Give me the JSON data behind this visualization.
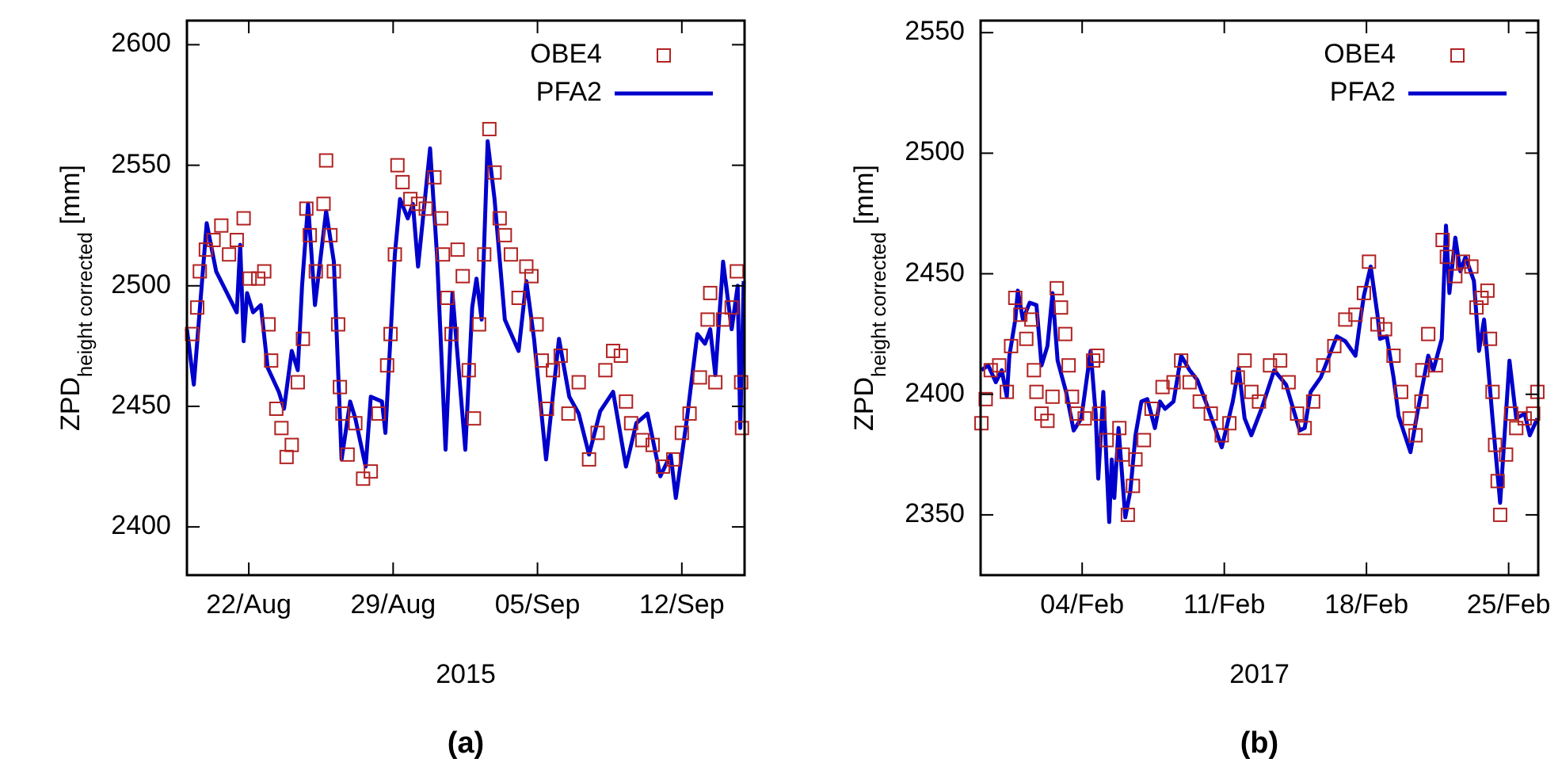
{
  "chart_data": [
    {
      "type": "scatter",
      "title": "(a)",
      "xlabel": "2015",
      "ylabel": "ZPD$_{height corrected}$ [mm]",
      "xlim": [
        "2015-08-19",
        "2015-09-15T01:00"
      ],
      "ylim": [
        2380,
        2610
      ],
      "xticks": [
        {
          "value": "2015-08-22",
          "label": "22/Aug"
        },
        {
          "value": "2015-08-29",
          "label": "29/Aug"
        },
        {
          "value": "2015-09-05",
          "label": "05/Sep"
        },
        {
          "value": "2015-09-12",
          "label": "12/Sep"
        }
      ],
      "yticks": [
        2400,
        2450,
        2500,
        2550,
        2600
      ],
      "grid": false,
      "legend": "top right",
      "series": [
        {
          "name": "OBE4",
          "marker": "square",
          "color": "#b22222",
          "x": [
            "2015-08-19T06:00",
            "2015-08-19T12:00",
            "2015-08-19T15:00",
            "2015-08-19T22:00",
            "2015-08-20T07:00",
            "2015-08-20T16:00",
            "2015-08-21T01:00",
            "2015-08-21T10:00",
            "2015-08-21T18:00",
            "2015-08-22T01:00",
            "2015-08-22T11:00",
            "2015-08-22T18:00",
            "2015-08-22T23:00",
            "2015-08-23T02:00",
            "2015-08-23T08:00",
            "2015-08-23T14:00",
            "2015-08-23T20:00",
            "2015-08-24T02:00",
            "2015-08-24T09:00",
            "2015-08-24T15:00",
            "2015-08-24T19:00",
            "2015-08-24T23:00",
            "2015-08-25T06:00",
            "2015-08-25T15:00",
            "2015-08-25T18:00",
            "2015-08-25T23:00",
            "2015-08-26T03:00",
            "2015-08-26T08:00",
            "2015-08-26T10:00",
            "2015-08-26T13:00",
            "2015-08-26T19:00",
            "2015-08-27T04:00",
            "2015-08-27T13:00",
            "2015-08-27T22:00",
            "2015-08-28T07:00",
            "2015-08-28T17:00",
            "2015-08-28T21:00",
            "2015-08-29T02:00",
            "2015-08-29T05:00",
            "2015-08-29T11:00",
            "2015-08-29T20:00",
            "2015-08-30T05:00",
            "2015-08-30T14:00",
            "2015-08-31T00:00",
            "2015-08-31T08:00",
            "2015-08-31T10:00",
            "2015-08-31T15:00",
            "2015-08-31T20:00",
            "2015-09-01T03:00",
            "2015-09-01T09:00",
            "2015-09-01T16:00",
            "2015-09-01T22:00",
            "2015-09-02T04:00",
            "2015-09-02T10:00",
            "2015-09-02T16:00",
            "2015-09-02T22:00",
            "2015-09-03T04:00",
            "2015-09-03T10:00",
            "2015-09-03T17:00",
            "2015-09-04T02:00",
            "2015-09-04T11:00",
            "2015-09-04T17:00",
            "2015-09-04T23:00",
            "2015-09-05T05:00",
            "2015-09-05T11:00",
            "2015-09-05T18:00",
            "2015-09-06T03:00",
            "2015-09-06T12:00",
            "2015-09-07T00:00",
            "2015-09-07T12:00",
            "2015-09-07T22:00",
            "2015-09-08T07:00",
            "2015-09-08T16:00",
            "2015-09-09T01:00",
            "2015-09-09T07:00",
            "2015-09-09T13:00",
            "2015-09-10T02:00",
            "2015-09-10T14:00",
            "2015-09-11T02:00",
            "2015-09-11T14:00",
            "2015-09-12T00:00",
            "2015-09-12T09:00",
            "2015-09-12T21:00",
            "2015-09-13T06:00",
            "2015-09-13T09:00",
            "2015-09-13T15:00",
            "2015-09-14T00:00",
            "2015-09-14T10:00",
            "2015-09-14T16:00",
            "2015-09-14T21:00",
            "2015-09-14T22:00"
          ],
          "values": [
            2480,
            2491,
            2506,
            2515,
            2519,
            2525,
            2513,
            2519,
            2528,
            2503,
            2503,
            2506,
            2484,
            2469,
            2449,
            2441,
            2429,
            2434,
            2460,
            2478,
            2532,
            2521,
            2506,
            2534,
            2552,
            2521,
            2506,
            2484,
            2458,
            2447,
            2430,
            2443,
            2420,
            2423,
            2447,
            2467,
            2480,
            2513,
            2550,
            2543,
            2536,
            2534,
            2532,
            2545,
            2528,
            2513,
            2495,
            2480,
            2515,
            2504,
            2465,
            2445,
            2484,
            2513,
            2565,
            2547,
            2528,
            2521,
            2513,
            2495,
            2508,
            2504,
            2484,
            2469,
            2449,
            2465,
            2471,
            2447,
            2460,
            2428,
            2439,
            2465,
            2473,
            2471,
            2452,
            2443,
            2436,
            2434,
            2425,
            2428,
            2439,
            2447,
            2462,
            2486,
            2497,
            2460,
            2486,
            2491,
            2506,
            2460,
            2441
          ]
        },
        {
          "name": "PFA2",
          "type": "line",
          "color": "#0000cc",
          "line_style": "solid",
          "x": [
            "2015-08-19T00:00",
            "2015-08-19T08:00",
            "2015-08-19T23:00",
            "2015-08-20T10:00",
            "2015-08-21T10:00",
            "2015-08-21T14:00",
            "2015-08-21T18:00",
            "2015-08-21T22:00",
            "2015-08-22T05:00",
            "2015-08-22T14:00",
            "2015-08-22T22:00",
            "2015-08-23T11:00",
            "2015-08-23T17:00",
            "2015-08-24T02:00",
            "2015-08-24T09:00",
            "2015-08-24T14:00",
            "2015-08-24T21:00",
            "2015-08-25T05:00",
            "2015-08-25T18:00",
            "2015-08-26T03:00",
            "2015-08-26T12:00",
            "2015-08-26T22:00",
            "2015-08-27T04:00",
            "2015-08-27T16:00",
            "2015-08-27T22:00",
            "2015-08-28T11:00",
            "2015-08-28T15:00",
            "2015-08-29T02:00",
            "2015-08-29T08:00",
            "2015-08-29T17:00",
            "2015-08-29T23:00",
            "2015-08-30T05:00",
            "2015-08-30T19:00",
            "2015-08-31T03:00",
            "2015-08-31T13:00",
            "2015-08-31T21:00",
            "2015-09-01T12:00",
            "2015-09-01T20:00",
            "2015-09-02T01:00",
            "2015-09-02T07:00",
            "2015-09-02T14:00",
            "2015-09-02T22:00",
            "2015-09-03T10:00",
            "2015-09-04T02:00",
            "2015-09-04T11:00",
            "2015-09-04T20:00",
            "2015-09-05T10:00",
            "2015-09-06T01:00",
            "2015-09-06T13:00",
            "2015-09-07T00:00",
            "2015-09-07T12:00",
            "2015-09-08T01:00",
            "2015-09-08T16:00",
            "2015-09-09T07:00",
            "2015-09-09T19:00",
            "2015-09-10T08:00",
            "2015-09-10T23:00",
            "2015-09-11T11:00",
            "2015-09-11T17:00",
            "2015-09-12T06:00",
            "2015-09-12T18:00",
            "2015-09-13T03:00",
            "2015-09-13T09:00",
            "2015-09-13T15:00",
            "2015-09-14T00:00",
            "2015-09-14T10:00",
            "2015-09-14T17:00",
            "2015-09-14T20:00",
            "2015-09-15T00:00"
          ],
          "values": [
            2482,
            2459,
            2526,
            2506,
            2489,
            2517,
            2477,
            2497,
            2489,
            2492,
            2466,
            2456,
            2449,
            2473,
            2465,
            2500,
            2534,
            2492,
            2531,
            2510,
            2428,
            2452,
            2445,
            2425,
            2454,
            2452,
            2439,
            2513,
            2536,
            2528,
            2534,
            2508,
            2557,
            2513,
            2432,
            2497,
            2432,
            2491,
            2503,
            2486,
            2560,
            2536,
            2486,
            2473,
            2502,
            2478,
            2428,
            2478,
            2454,
            2447,
            2430,
            2448,
            2456,
            2425,
            2443,
            2447,
            2421,
            2430,
            2412,
            2445,
            2480,
            2476,
            2482,
            2463,
            2510,
            2482,
            2500,
            2441,
            2502
          ]
        }
      ]
    },
    {
      "type": "scatter",
      "title": "(b)",
      "xlabel": "2017",
      "ylabel": "ZPD$_{height corrected}$ [mm]",
      "xlim": [
        "2017-01-30",
        "2017-02-26T11:00"
      ],
      "ylim": [
        2325,
        2555
      ],
      "xticks": [
        {
          "value": "2017-02-04",
          "label": "04/Feb"
        },
        {
          "value": "2017-02-11",
          "label": "11/Feb"
        },
        {
          "value": "2017-02-18",
          "label": "18/Feb"
        },
        {
          "value": "2017-02-25",
          "label": "25/Feb"
        }
      ],
      "yticks": [
        2350,
        2400,
        2450,
        2500,
        2550
      ],
      "grid": false,
      "legend": "top right",
      "series": [
        {
          "name": "OBE4",
          "marker": "square",
          "color": "#b22222",
          "x": [
            "2017-01-30T01:00",
            "2017-01-30T06:00",
            "2017-01-30T12:00",
            "2017-01-30T22:00",
            "2017-01-31T07:00",
            "2017-01-31T12:00",
            "2017-01-31T17:00",
            "2017-01-31T23:00",
            "2017-02-01T06:00",
            "2017-02-01T12:00",
            "2017-02-01T15:00",
            "2017-02-01T18:00",
            "2017-02-02T00:00",
            "2017-02-02T07:00",
            "2017-02-02T13:00",
            "2017-02-02T18:00",
            "2017-02-02T23:00",
            "2017-02-03T04:00",
            "2017-02-03T08:00",
            "2017-02-03T12:00",
            "2017-02-03T18:00",
            "2017-02-04T03:00",
            "2017-02-04T13:00",
            "2017-02-04T18:00",
            "2017-02-04T20:00",
            "2017-02-05T05:00",
            "2017-02-05T20:00",
            "2017-02-06T00:00",
            "2017-02-06T06:00",
            "2017-02-06T12:00",
            "2017-02-06T15:00",
            "2017-02-07T01:00",
            "2017-02-07T10:00",
            "2017-02-07T23:00",
            "2017-02-08T12:00",
            "2017-02-08T21:00",
            "2017-02-09T07:00",
            "2017-02-09T19:00",
            "2017-02-10T08:00",
            "2017-02-10T21:00",
            "2017-02-11T06:00",
            "2017-02-11T16:00",
            "2017-02-12T00:00",
            "2017-02-12T08:00",
            "2017-02-12T17:00",
            "2017-02-13T06:00",
            "2017-02-13T18:00",
            "2017-02-14T04:00",
            "2017-02-14T14:00",
            "2017-02-14T23:00",
            "2017-02-15T09:00",
            "2017-02-15T21:00",
            "2017-02-16T10:00",
            "2017-02-16T23:00",
            "2017-02-17T11:00",
            "2017-02-17T21:00",
            "2017-02-18T03:00",
            "2017-02-18T13:00",
            "2017-02-18T22:00",
            "2017-02-19T08:00",
            "2017-02-19T17:00",
            "2017-02-20T03:00",
            "2017-02-20T10:00",
            "2017-02-20T17:00",
            "2017-02-20T18:00",
            "2017-02-21T01:00",
            "2017-02-21T10:00",
            "2017-02-21T18:00",
            "2017-02-21T23:00",
            "2017-02-22T09:00",
            "2017-02-22T18:00",
            "2017-02-23T04:00",
            "2017-02-23T10:00",
            "2017-02-23T16:00",
            "2017-02-23T23:00",
            "2017-02-24T02:00",
            "2017-02-24T05:00",
            "2017-02-24T08:00",
            "2017-02-24T11:00",
            "2017-02-24T14:00",
            "2017-02-24T21:00",
            "2017-02-25T03:00",
            "2017-02-25T09:00",
            "2017-02-25T19:00",
            "2017-02-26T05:00",
            "2017-02-26T10:00"
          ],
          "values": [
            2388,
            2398,
            2410,
            2412,
            2401,
            2420,
            2440,
            2433,
            2423,
            2431,
            2410,
            2401,
            2392,
            2389,
            2399,
            2444,
            2436,
            2425,
            2412,
            2399,
            2392,
            2390,
            2414,
            2416,
            2392,
            2381,
            2386,
            2375,
            2350,
            2362,
            2373,
            2381,
            2394,
            2403,
            2405,
            2414,
            2405,
            2397,
            2392,
            2383,
            2388,
            2407,
            2414,
            2401,
            2397,
            2412,
            2414,
            2405,
            2392,
            2386,
            2397,
            2412,
            2420,
            2431,
            2433,
            2442,
            2455,
            2429,
            2427,
            2416,
            2401,
            2390,
            2383,
            2397,
            2410,
            2425,
            2412,
            2464,
            2457,
            2449,
            2455,
            2453,
            2436,
            2440,
            2443,
            2423,
            2401,
            2379,
            2364,
            2350,
            2375,
            2392,
            2386,
            2390,
            2392,
            2401
          ]
        },
        {
          "name": "PFA2",
          "type": "line",
          "color": "#0000cc",
          "line_style": "solid",
          "x": [
            "2017-01-30T01:00",
            "2017-01-30T09:00",
            "2017-01-30T18:00",
            "2017-01-31T01:00",
            "2017-01-31T07:00",
            "2017-01-31T10:00",
            "2017-01-31T17:00",
            "2017-01-31T20:00",
            "2017-02-01T02:00",
            "2017-02-01T10:00",
            "2017-02-01T18:00",
            "2017-02-02T00:00",
            "2017-02-02T07:00",
            "2017-02-02T13:00",
            "2017-02-02T19:00",
            "2017-02-03T05:00",
            "2017-02-03T14:00",
            "2017-02-03T23:00",
            "2017-02-04T10:00",
            "2017-02-04T16:00",
            "2017-02-04T19:00",
            "2017-02-05T01:00",
            "2017-02-05T08:00",
            "2017-02-05T11:00",
            "2017-02-05T14:00",
            "2017-02-05T19:00",
            "2017-02-06T03:00",
            "2017-02-06T09:00",
            "2017-02-06T15:00",
            "2017-02-06T22:00",
            "2017-02-07T05:00",
            "2017-02-07T14:00",
            "2017-02-07T20:00",
            "2017-02-08T02:00",
            "2017-02-08T12:00",
            "2017-02-08T21:00",
            "2017-02-09T07:00",
            "2017-02-09T16:00",
            "2017-02-10T02:00",
            "2017-02-10T21:00",
            "2017-02-11T10:00",
            "2017-02-11T17:00",
            "2017-02-12T00:00",
            "2017-02-12T08:00",
            "2017-02-12T20:00",
            "2017-02-13T11:00",
            "2017-02-14T01:00",
            "2017-02-14T17:00",
            "2017-02-14T23:00",
            "2017-02-15T06:00",
            "2017-02-15T18:00",
            "2017-02-16T13:00",
            "2017-02-16T23:00",
            "2017-02-17T11:00",
            "2017-02-17T16:00",
            "2017-02-17T21:00",
            "2017-02-18T05:00",
            "2017-02-18T13:00",
            "2017-02-18T16:00",
            "2017-02-19T00:00",
            "2017-02-19T08:00",
            "2017-02-19T14:00",
            "2017-02-20T04:00",
            "2017-02-20T12:00",
            "2017-02-21T01:00",
            "2017-02-21T07:00",
            "2017-02-21T17:00",
            "2017-02-21T22:00",
            "2017-02-22T02:00",
            "2017-02-22T09:00",
            "2017-02-22T15:00",
            "2017-02-22T21:00",
            "2017-02-23T07:00",
            "2017-02-23T13:00",
            "2017-02-23T19:00",
            "2017-02-24T05:00",
            "2017-02-24T14:00",
            "2017-02-25T01:00",
            "2017-02-25T09:00",
            "2017-02-25T19:00",
            "2017-02-26T01:00",
            "2017-02-26T10:00"
          ],
          "values": [
            2410,
            2412,
            2405,
            2410,
            2399,
            2416,
            2431,
            2443,
            2431,
            2438,
            2437,
            2412,
            2420,
            2442,
            2414,
            2401,
            2385,
            2390,
            2418,
            2392,
            2365,
            2401,
            2347,
            2373,
            2357,
            2386,
            2349,
            2360,
            2383,
            2397,
            2398,
            2386,
            2397,
            2394,
            2397,
            2416,
            2410,
            2406,
            2397,
            2378,
            2397,
            2411,
            2390,
            2383,
            2394,
            2410,
            2404,
            2385,
            2386,
            2401,
            2407,
            2424,
            2422,
            2416,
            2429,
            2441,
            2453,
            2433,
            2423,
            2424,
            2407,
            2391,
            2376,
            2392,
            2416,
            2410,
            2423,
            2470,
            2442,
            2465,
            2451,
            2457,
            2447,
            2418,
            2431,
            2390,
            2355,
            2414,
            2390,
            2392,
            2383,
            2390
          ]
        }
      ]
    }
  ]
}
